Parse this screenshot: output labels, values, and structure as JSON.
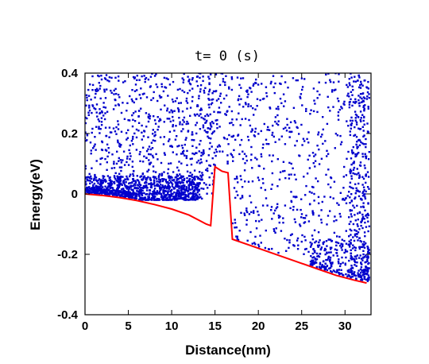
{
  "chart_data": {
    "type": "scatter",
    "title": "t= 0 (s)",
    "xlabel": "Distance(nm)",
    "ylabel": "Energy(eV)",
    "xlim": [
      0,
      33
    ],
    "ylim": [
      -0.4,
      0.4
    ],
    "x_ticks": [
      0,
      5,
      10,
      15,
      20,
      25,
      30
    ],
    "y_ticks": [
      -0.4,
      -0.2,
      0,
      0.2,
      0.4
    ],
    "x_tick_labels": [
      "0",
      "5",
      "10",
      "15",
      "20",
      "25",
      "30"
    ],
    "y_tick_labels": [
      "-0.4",
      "-0.2",
      "0",
      "0.2",
      "0.4"
    ],
    "grid": false,
    "legend": "none",
    "series": [
      {
        "type": "line",
        "color": "#ff0000",
        "x": [
          0,
          2,
          4,
          6,
          8,
          10,
          12,
          13,
          14,
          14.5,
          15,
          15.8,
          16.5,
          17,
          19,
          21,
          23,
          25,
          27,
          29,
          31,
          32.5
        ],
        "y": [
          0.0,
          -0.005,
          -0.012,
          -0.022,
          -0.035,
          -0.05,
          -0.07,
          -0.085,
          -0.1,
          -0.105,
          0.09,
          0.075,
          0.07,
          -0.15,
          -0.17,
          -0.19,
          -0.21,
          -0.23,
          -0.25,
          -0.27,
          -0.285,
          -0.295
        ]
      },
      {
        "type": "scatter",
        "color": "#0000cc",
        "regions": [
          {
            "xmin": 0,
            "xmax": 13.5,
            "ymin": -0.02,
            "ymax": 0.06,
            "count": 900,
            "note": "dense"
          },
          {
            "xmin": 0,
            "xmax": 15,
            "ymin": 0.0,
            "ymax": 0.4,
            "count": 700
          },
          {
            "xmin": 15,
            "xmax": 17,
            "ymin": 0.1,
            "ymax": 0.4,
            "count": 60
          },
          {
            "xmin": 17,
            "xmax": 30.5,
            "ymin": -0.2,
            "ymax": 0.4,
            "count": 500
          },
          {
            "xmin": 30.5,
            "xmax": 32.8,
            "ymin": -0.29,
            "ymax": 0.4,
            "count": 350
          },
          {
            "xmin": 26,
            "xmax": 32.8,
            "ymin": -0.3,
            "ymax": -0.15,
            "count": 250
          }
        ]
      }
    ]
  }
}
